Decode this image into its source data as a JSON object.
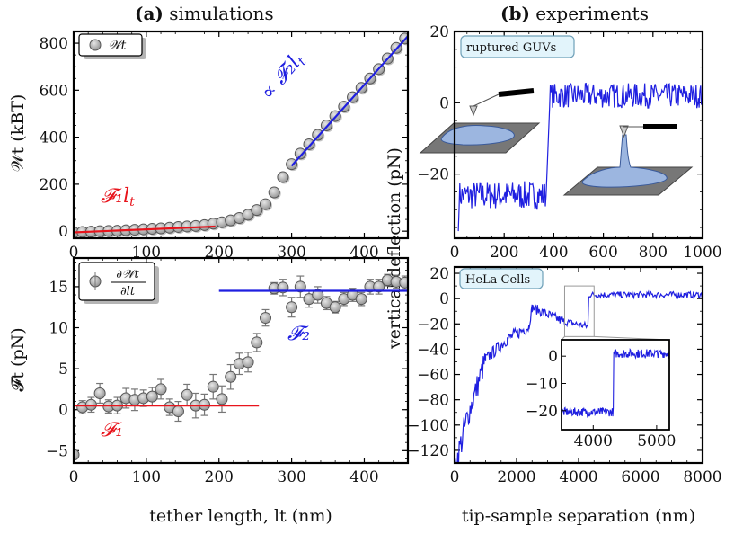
{
  "panel_titles": {
    "a_letter": "(a)",
    "a": "simulations",
    "b_letter": "(b)",
    "b": "experiments"
  },
  "colors": {
    "red": "#e8141c",
    "blue": "#1f1fe0",
    "marker": "#b0b0b0",
    "image_blue": "#9cb6e0"
  },
  "chart_data": [
    {
      "id": "a-top",
      "type": "scatter",
      "xlim": [
        0,
        460
      ],
      "ylim": [
        -30,
        850
      ],
      "ylabel": "𝒲t (kBT)",
      "xticks": [
        "0",
        "100",
        "200",
        "300",
        "400"
      ],
      "xtick_values": [
        0,
        100,
        200,
        300,
        400
      ],
      "yticks": [
        "0",
        "200",
        "400",
        "600",
        "800"
      ],
      "ytick_values": [
        0,
        200,
        400,
        600,
        800
      ],
      "legend": "𝒲t",
      "series": [
        {
          "name": "𝒲t",
          "x": [
            0,
            12,
            24,
            36,
            48,
            60,
            72,
            84,
            96,
            108,
            120,
            132,
            144,
            156,
            168,
            180,
            192,
            204,
            216,
            228,
            240,
            252,
            264,
            276,
            288,
            300,
            312,
            324,
            336,
            348,
            360,
            372,
            384,
            396,
            408,
            420,
            432,
            444,
            456
          ],
          "y": [
            -5,
            -3,
            -2,
            0,
            1,
            2,
            4,
            6,
            8,
            10,
            12,
            15,
            18,
            20,
            22,
            26,
            32,
            38,
            46,
            56,
            70,
            90,
            115,
            165,
            230,
            285,
            330,
            370,
            410,
            450,
            490,
            530,
            570,
            610,
            650,
            690,
            735,
            780,
            820
          ]
        }
      ],
      "fits": [
        {
          "label_math": "𝓕₁",
          "label_text": "F1 lt",
          "x": [
            0,
            195
          ],
          "y": [
            -5,
            20
          ],
          "color": "red"
        },
        {
          "label_math": "∝ 𝓕₂",
          "label_text": "∝ F2 lt",
          "x": [
            300,
            460
          ],
          "y": [
            278,
            830
          ],
          "color": "blue"
        }
      ],
      "annotations": [
        "𝓕₁",
        "∝ 𝓕₂",
        "l",
        "t",
        "l",
        "t"
      ]
    },
    {
      "id": "a-bottom",
      "type": "scatter",
      "xlim": [
        0,
        460
      ],
      "ylim": [
        -6.5,
        18.5
      ],
      "xlabel": "tether length, lt (nm)",
      "ylabel": "𝓕t (pN)",
      "xticks": [
        "0",
        "100",
        "200",
        "300",
        "400"
      ],
      "xtick_values": [
        0,
        100,
        200,
        300,
        400
      ],
      "yticks": [
        "−5",
        "0",
        "5",
        "10",
        "15"
      ],
      "ytick_values": [
        -5,
        0,
        5,
        10,
        15
      ],
      "legend": "∂𝒲t / ∂lt",
      "series": [
        {
          "name": "∂𝒲t/∂lt",
          "x": [
            0,
            12,
            24,
            36,
            48,
            60,
            72,
            84,
            96,
            108,
            120,
            132,
            144,
            156,
            168,
            180,
            192,
            204,
            216,
            228,
            240,
            252,
            264,
            276,
            288,
            300,
            312,
            324,
            336,
            348,
            360,
            372,
            384,
            396,
            408,
            420,
            432,
            444,
            456
          ],
          "y": [
            -5.5,
            0.3,
            0.6,
            2.0,
            0.4,
            0.5,
            1.4,
            1.2,
            1.4,
            1.6,
            2.5,
            0.3,
            -0.2,
            1.8,
            0.5,
            0.6,
            2.8,
            1.3,
            4.0,
            5.6,
            5.8,
            8.2,
            11.2,
            14.8,
            14.9,
            12.5,
            15.0,
            13.5,
            14.0,
            13.0,
            12.5,
            13.5,
            14.0,
            13.5,
            15.0,
            15.0,
            15.8,
            15.6,
            15.5
          ],
          "err": [
            0.5,
            0.8,
            0.9,
            1.2,
            0.8,
            1.0,
            1.2,
            1.3,
            1.0,
            1.1,
            1.2,
            1.0,
            1.2,
            1.3,
            1.5,
            1.3,
            1.5,
            1.6,
            1.5,
            1.3,
            1.2,
            1.1,
            1.0,
            0.7,
            1.0,
            1.2,
            1.3,
            1.0,
            1.0,
            0.8,
            0.7,
            0.8,
            0.8,
            0.8,
            0.9,
            0.9,
            0.7,
            0.8,
            0.8
          ]
        }
      ],
      "fits": [
        {
          "label_math": "𝓕₁",
          "x": [
            0,
            255
          ],
          "y": [
            0.5,
            0.5
          ],
          "color": "red"
        },
        {
          "label_math": "𝓕₂",
          "x": [
            200,
            460
          ],
          "y": [
            14.5,
            14.5
          ],
          "color": "blue"
        }
      ],
      "annotations": [
        "𝓕₁",
        "𝓕₂"
      ]
    },
    {
      "id": "b-top",
      "type": "line",
      "xlim": [
        0,
        1000
      ],
      "ylim": [
        -38,
        20
      ],
      "xticks": [
        "0",
        "200",
        "400",
        "600",
        "800",
        "1000"
      ],
      "xtick_values": [
        0,
        200,
        400,
        600,
        800,
        1000
      ],
      "yticks": [
        "−20",
        "0",
        "20"
      ],
      "ytick_values": [
        -20,
        0,
        20
      ],
      "label_box": "ruptured GUVs",
      "series": [
        {
          "name": "deflection",
          "segments": [
            {
              "x": [
                15,
                370
              ],
              "y_mean": -26,
              "noise": 4
            },
            {
              "x": [
                380,
                1000
              ],
              "y_mean": 2,
              "noise": 3.5
            }
          ],
          "start_y": -36,
          "step_x": 375
        }
      ]
    },
    {
      "id": "b-bottom",
      "type": "line",
      "xlim": [
        0,
        8000
      ],
      "ylim": [
        -130,
        25
      ],
      "xlabel": "tip-sample separation (nm)",
      "xticks": [
        "0",
        "2000",
        "4000",
        "6000",
        "8000"
      ],
      "xtick_values": [
        0,
        2000,
        4000,
        6000,
        8000
      ],
      "yticks": [
        "−120",
        "−100",
        "−80",
        "−60",
        "−40",
        "−20",
        "0",
        "20"
      ],
      "ytick_values": [
        -120,
        -100,
        -80,
        -60,
        -40,
        -20,
        0,
        20
      ],
      "label_box": "HeLa Cells",
      "inset": {
        "xlim": [
          3500,
          5200
        ],
        "ylim": [
          -27,
          6
        ],
        "xticks": [
          "4000",
          "5000"
        ],
        "xtick_values": [
          4000,
          5000
        ],
        "yticks": [
          "−20",
          "−10",
          "0"
        ],
        "ytick_values": [
          -20,
          -10,
          0
        ],
        "zoom_box_x": [
          3550,
          4500
        ],
        "zoom_box_y": [
          -30,
          10
        ]
      }
    }
  ],
  "shared_ylabel": "vertical deflection (pN)"
}
